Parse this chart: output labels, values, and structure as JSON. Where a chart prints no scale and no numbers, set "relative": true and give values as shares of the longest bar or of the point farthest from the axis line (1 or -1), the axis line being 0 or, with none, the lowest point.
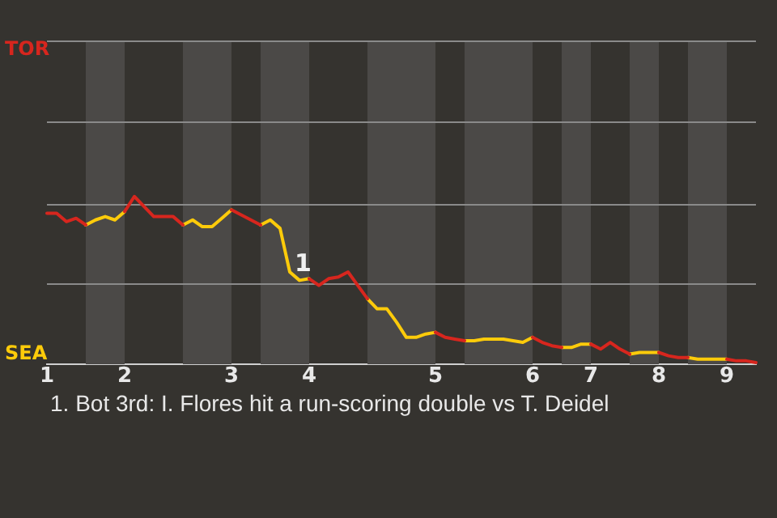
{
  "chart_data": {
    "type": "line",
    "categories": [
      "1",
      null,
      null,
      null,
      null,
      null,
      null,
      null,
      "2",
      null,
      null,
      null,
      null,
      null,
      null,
      null,
      null,
      null,
      null,
      "3",
      null,
      null,
      null,
      null,
      null,
      null,
      null,
      "4",
      null,
      null,
      null,
      null,
      null,
      null,
      null,
      null,
      null,
      null,
      null,
      null,
      "5",
      null,
      null,
      null,
      null,
      null,
      null,
      null,
      null,
      null,
      "6",
      null,
      null,
      null,
      null,
      null,
      "7",
      null,
      null,
      null,
      null,
      null,
      null,
      "8",
      null,
      null,
      null,
      null,
      null,
      null,
      "9",
      null,
      null,
      null
    ],
    "relative": true,
    "series": [
      {
        "color": "#d7261e",
        "values": [
          0.9,
          0.9,
          0.85,
          0.87,
          0.83,
          null,
          null,
          null,
          0.91,
          1,
          0.94,
          0.88,
          0.88,
          0.88,
          0.83,
          null,
          null,
          null,
          null,
          0.92,
          0.89,
          0.86,
          0.83,
          null,
          null,
          null,
          null,
          0.51,
          0.47,
          0.51,
          0.52,
          0.55,
          0.47,
          0.39,
          null,
          null,
          null,
          null,
          null,
          null,
          0.19,
          0.16,
          0.15,
          0.14,
          null,
          null,
          null,
          null,
          null,
          null,
          0.16,
          0.13,
          0.11,
          0.1,
          null,
          null,
          0.12,
          0.09,
          0.13,
          0.09,
          0.06,
          null,
          null,
          0.07,
          0.05,
          0.04,
          0.04,
          null,
          null,
          null,
          0.03,
          0.02,
          0.02,
          0.01
        ]
      },
      {
        "color": "#fdcb0a",
        "values": [
          null,
          null,
          null,
          null,
          0.83,
          0.86,
          0.88,
          0.86,
          0.91,
          null,
          null,
          null,
          null,
          null,
          0.83,
          0.86,
          0.82,
          0.82,
          0.87,
          0.92,
          null,
          null,
          0.83,
          0.86,
          0.81,
          0.55,
          0.5,
          0.51,
          null,
          null,
          null,
          null,
          null,
          0.39,
          0.33,
          0.33,
          0.25,
          0.16,
          0.16,
          0.18,
          0.19,
          null,
          null,
          0.14,
          0.14,
          0.15,
          0.15,
          0.15,
          0.14,
          0.13,
          0.16,
          null,
          null,
          0.1,
          0.1,
          0.12,
          0.12,
          null,
          null,
          null,
          0.06,
          0.07,
          0.07,
          0.07,
          null,
          null,
          0.04,
          0.03,
          0.03,
          0.03,
          0.03,
          null,
          null,
          null
        ]
      }
    ],
    "ref_lines": [
      {
        "axis": "y",
        "value": 0.48,
        "color": "#8a8a8a"
      },
      {
        "axis": "y",
        "value": 0.96,
        "color": "#8a8a8a"
      },
      {
        "axis": "y",
        "value": 1.45,
        "color": "#8a8a8a"
      },
      {
        "axis": "y",
        "value": 1.93,
        "color": "#8a8a8a"
      }
    ],
    "marker": "none",
    "line_style": "solid",
    "annotations": [
      "TOR",
      "SEA",
      {
        "text": "1",
        "y": 0.5
      },
      "1. Bot 3rd: I. Flores hit a run-scoring double vs T. Deidel"
    ]
  }
}
